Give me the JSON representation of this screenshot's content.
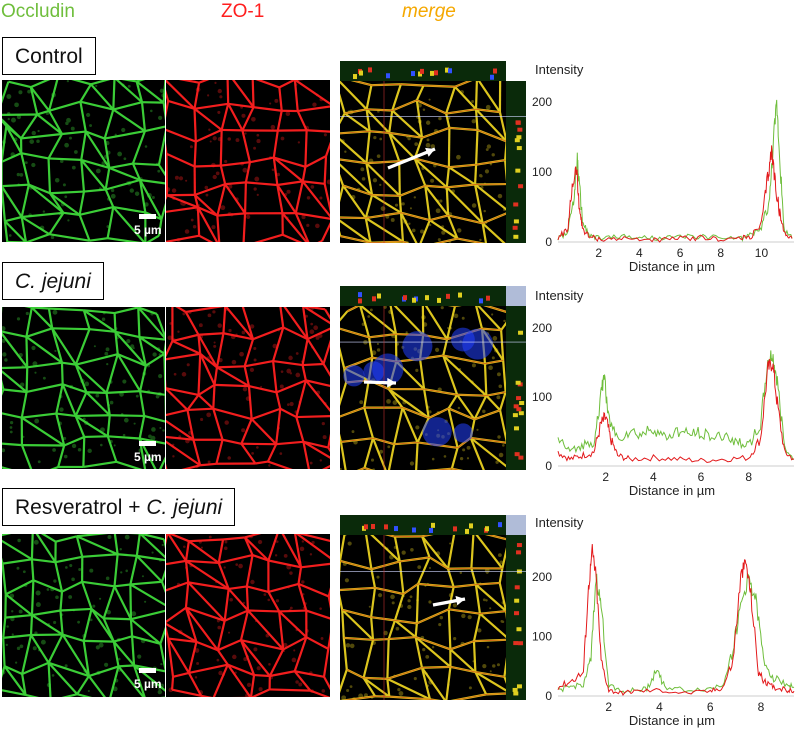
{
  "channels": {
    "occludin": {
      "label": "Occludin",
      "color": "#6fbe3c"
    },
    "zo1": {
      "label": "ZO-1",
      "color": "#ff1e1e"
    },
    "merge": {
      "label": "merge",
      "color": "#f5a800"
    }
  },
  "scale_label": "5 µm",
  "rows": [
    {
      "condition": "Control",
      "condition_italic": "",
      "chart": {
        "ylabel": "Intensity",
        "xlabel": "Distance in µm",
        "y_ticks": [
          "0",
          "100",
          "200"
        ],
        "x_ticks": [
          "2",
          "4",
          "6",
          "8",
          "10"
        ],
        "xlim": [
          0,
          11.6
        ],
        "ylim": [
          0,
          220
        ]
      }
    },
    {
      "condition": "",
      "condition_italic": "C. jejuni",
      "chart": {
        "ylabel": "Intensity",
        "xlabel": "Distance in µm",
        "y_ticks": [
          "0",
          "100",
          "200"
        ],
        "x_ticks": [
          "2",
          "4",
          "6",
          "8"
        ],
        "xlim": [
          0,
          9.9
        ],
        "ylim": [
          0,
          220
        ]
      }
    },
    {
      "condition": "Resveratrol + ",
      "condition_italic": "C. jejuni",
      "chart": {
        "ylabel": "Intensity",
        "xlabel": "Distance in µm",
        "y_ticks": [
          "0",
          "100",
          "200"
        ],
        "x_ticks": [
          "2",
          "4",
          "6",
          "8"
        ],
        "xlim": [
          0,
          9.3
        ],
        "ylim": [
          0,
          260
        ]
      }
    }
  ],
  "chart_data": [
    {
      "type": "line",
      "title": "",
      "xlabel": "Distance in µm",
      "ylabel": "Intensity",
      "xlim": [
        0,
        11.6
      ],
      "ylim": [
        0,
        220
      ],
      "series": [
        {
          "name": "",
          "color": "#6fbe3c",
          "x": [
            0,
            0.5,
            0.8,
            0.95,
            1.05,
            1.2,
            1.5,
            2,
            3,
            4,
            5,
            6,
            7,
            8,
            9,
            9.5,
            10,
            10.4,
            10.6,
            10.75,
            10.9,
            11.1,
            11.5
          ],
          "y": [
            5,
            15,
            70,
            120,
            80,
            30,
            10,
            5,
            8,
            6,
            5,
            7,
            8,
            6,
            5,
            10,
            20,
            60,
            150,
            200,
            120,
            20,
            5
          ]
        },
        {
          "name": "",
          "color": "#e31a1c",
          "x": [
            0,
            0.5,
            0.7,
            0.9,
            1.05,
            1.2,
            1.5,
            2,
            3,
            4,
            5,
            6,
            7,
            8,
            9,
            9.5,
            10,
            10.3,
            10.5,
            10.7,
            10.9,
            11.1,
            11.5
          ],
          "y": [
            5,
            20,
            80,
            105,
            50,
            20,
            8,
            4,
            5,
            4,
            3,
            5,
            6,
            4,
            5,
            8,
            25,
            90,
            130,
            80,
            40,
            15,
            5
          ]
        }
      ]
    },
    {
      "type": "line",
      "title": "",
      "xlabel": "Distance in µm",
      "ylabel": "Intensity",
      "xlim": [
        0,
        9.9
      ],
      "ylim": [
        0,
        220
      ],
      "series": [
        {
          "name": "",
          "color": "#6fbe3c",
          "x": [
            0,
            0.5,
            1,
            1.5,
            1.8,
            1.95,
            2.1,
            2.5,
            3,
            3.5,
            4,
            4.5,
            5,
            5.5,
            6,
            6.5,
            7,
            7.5,
            8,
            8.5,
            8.8,
            9,
            9.2,
            9.5,
            9.9
          ],
          "y": [
            40,
            20,
            30,
            35,
            100,
            135,
            70,
            40,
            50,
            45,
            55,
            40,
            50,
            45,
            50,
            40,
            45,
            35,
            30,
            60,
            150,
            160,
            120,
            30,
            10
          ]
        },
        {
          "name": "",
          "color": "#e31a1c",
          "x": [
            0,
            0.5,
            1,
            1.5,
            1.8,
            2,
            2.2,
            2.5,
            3,
            4,
            5,
            6,
            7,
            8,
            8.5,
            8.8,
            9,
            9.2,
            9.5,
            9.9
          ],
          "y": [
            20,
            10,
            15,
            20,
            60,
            70,
            40,
            15,
            10,
            12,
            10,
            8,
            10,
            12,
            40,
            140,
            150,
            90,
            20,
            10
          ]
        }
      ]
    },
    {
      "type": "line",
      "title": "",
      "xlabel": "Distance in µm",
      "ylabel": "Intensity",
      "xlim": [
        0,
        9.3
      ],
      "ylim": [
        0,
        260
      ],
      "series": [
        {
          "name": "",
          "color": "#6fbe3c",
          "x": [
            0,
            0.5,
            1,
            1.3,
            1.5,
            1.7,
            2,
            2.5,
            3,
            3.5,
            3.9,
            4.2,
            5,
            6,
            6.5,
            6.9,
            7.2,
            7.5,
            7.8,
            8.1,
            8.5,
            9,
            9.3
          ],
          "y": [
            10,
            15,
            20,
            60,
            200,
            150,
            20,
            8,
            10,
            12,
            45,
            15,
            10,
            12,
            20,
            80,
            150,
            200,
            160,
            60,
            30,
            20,
            15
          ]
        },
        {
          "name": "",
          "color": "#e31a1c",
          "x": [
            0,
            0.5,
            1,
            1.2,
            1.35,
            1.5,
            1.7,
            2,
            2.5,
            3,
            4,
            5,
            6,
            6.5,
            6.9,
            7.2,
            7.4,
            7.6,
            7.9,
            8.2,
            8.5,
            9,
            9.3
          ],
          "y": [
            15,
            25,
            40,
            180,
            245,
            200,
            60,
            10,
            5,
            8,
            10,
            5,
            8,
            15,
            60,
            200,
            225,
            170,
            40,
            20,
            15,
            10,
            8
          ]
        }
      ]
    }
  ]
}
